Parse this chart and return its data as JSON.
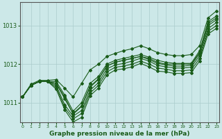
{
  "xlabel": "Graphe pression niveau de la mer (hPa)",
  "ylim": [
    1010.5,
    1013.6
  ],
  "xlim": [
    -0.3,
    23.3
  ],
  "yticks": [
    1011,
    1012,
    1013
  ],
  "xticks": [
    0,
    1,
    2,
    3,
    4,
    5,
    6,
    7,
    8,
    9,
    10,
    11,
    12,
    13,
    14,
    15,
    16,
    17,
    18,
    19,
    20,
    21,
    22,
    23
  ],
  "bg_color": "#cce8e8",
  "grid_color": "#aacccc",
  "line_color": "#1a5c1a",
  "markersize": 2.0,
  "linewidth": 0.8,
  "series": [
    [
      1011.15,
      1011.45,
      1011.55,
      1011.55,
      1011.5,
      1011.15,
      1010.7,
      1010.9,
      1011.4,
      1011.6,
      1011.95,
      1012.05,
      1012.1,
      1012.15,
      1012.2,
      1012.15,
      1012.05,
      1012.0,
      1012.0,
      1012.0,
      1012.0,
      1012.3,
      1013.05,
      1013.2
    ],
    [
      1011.15,
      1011.45,
      1011.55,
      1011.55,
      1011.55,
      1011.2,
      1010.78,
      1011.0,
      1011.5,
      1011.68,
      1012.0,
      1012.1,
      1012.15,
      1012.2,
      1012.25,
      1012.18,
      1012.1,
      1012.05,
      1012.02,
      1012.02,
      1012.02,
      1012.35,
      1013.1,
      1013.25
    ],
    [
      1011.15,
      1011.45,
      1011.55,
      1011.55,
      1011.5,
      1011.1,
      1010.72,
      1010.92,
      1011.42,
      1011.62,
      1011.95,
      1012.05,
      1012.1,
      1012.15,
      1012.2,
      1012.12,
      1012.02,
      1011.98,
      1011.95,
      1011.95,
      1011.97,
      1012.28,
      1013.0,
      1013.15
    ],
    [
      1011.15,
      1011.45,
      1011.55,
      1011.55,
      1011.45,
      1010.95,
      1010.65,
      1010.8,
      1011.32,
      1011.52,
      1011.88,
      1011.98,
      1012.02,
      1012.08,
      1012.15,
      1012.08,
      1011.97,
      1011.93,
      1011.9,
      1011.9,
      1011.92,
      1012.22,
      1012.92,
      1013.08
    ],
    [
      1011.15,
      1011.45,
      1011.55,
      1011.55,
      1011.4,
      1010.88,
      1010.58,
      1010.72,
      1011.25,
      1011.45,
      1011.8,
      1011.92,
      1011.95,
      1012.0,
      1012.08,
      1012.0,
      1011.9,
      1011.87,
      1011.83,
      1011.83,
      1011.85,
      1012.15,
      1012.85,
      1013.0
    ],
    [
      1011.15,
      1011.45,
      1011.55,
      1011.55,
      1011.35,
      1010.82,
      1010.5,
      1010.62,
      1011.18,
      1011.38,
      1011.72,
      1011.85,
      1011.88,
      1011.93,
      1012.02,
      1011.93,
      1011.82,
      1011.8,
      1011.76,
      1011.76,
      1011.78,
      1012.08,
      1012.78,
      1012.93
    ],
    [
      1011.15,
      1011.48,
      1011.58,
      1011.58,
      1011.6,
      1011.38,
      1011.15,
      1011.5,
      1011.85,
      1012.0,
      1012.2,
      1012.28,
      1012.35,
      1012.4,
      1012.48,
      1012.4,
      1012.3,
      1012.25,
      1012.22,
      1012.22,
      1012.25,
      1012.48,
      1013.2,
      1013.38
    ]
  ]
}
